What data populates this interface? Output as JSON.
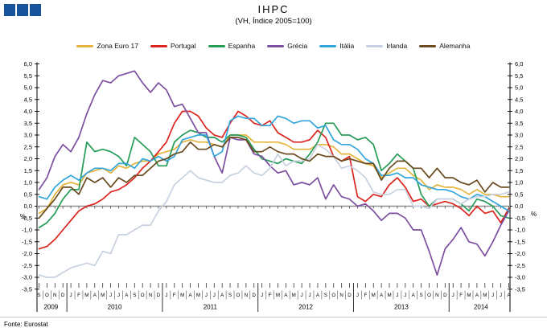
{
  "header": {
    "title": "IHPC",
    "subtitle": "(VH, Índice 2005=100)"
  },
  "logo": {
    "color": "#17549B",
    "squares": 3
  },
  "footer": {
    "source": "Fonte: Eurostat"
  },
  "chart_data": {
    "type": "line",
    "title": "IHPC",
    "subtitle": "(VH, Índice 2005=100)",
    "ylabel": "%",
    "ylim": [
      -3.5,
      6.0
    ],
    "ytick_step": 0.5,
    "decimal_separator": ",",
    "grid": "zero-line-only",
    "legend_position": "top-center",
    "months": [
      "S",
      "O",
      "N",
      "D",
      "J",
      "F",
      "M",
      "A",
      "M",
      "J",
      "J",
      "A",
      "S",
      "O",
      "N",
      "D",
      "J",
      "F",
      "M",
      "A",
      "M",
      "J",
      "J",
      "A",
      "S",
      "O",
      "N",
      "D",
      "J",
      "F",
      "M",
      "A",
      "M",
      "J",
      "J",
      "A",
      "S",
      "O",
      "N",
      "D",
      "J",
      "F",
      "M",
      "A",
      "M",
      "J",
      "J",
      "A",
      "S",
      "O",
      "N",
      "D",
      "J",
      "F",
      "M",
      "A",
      "M",
      "J",
      "J",
      "A"
    ],
    "year_segments": [
      {
        "label": "2009",
        "start": 0,
        "end": 3
      },
      {
        "label": "2010",
        "start": 4,
        "end": 15
      },
      {
        "label": "2011",
        "start": 16,
        "end": 27
      },
      {
        "label": "2012",
        "start": 28,
        "end": 39
      },
      {
        "label": "2013",
        "start": 40,
        "end": 51
      },
      {
        "label": "2014",
        "start": 52,
        "end": 59
      }
    ],
    "series": [
      {
        "name": "Zona Euro 17",
        "color": "#E4B33B",
        "values": [
          -0.3,
          -0.1,
          0.5,
          0.9,
          1.0,
          0.9,
          1.4,
          1.5,
          1.6,
          1.4,
          1.7,
          1.6,
          1.8,
          1.9,
          1.9,
          2.2,
          2.3,
          2.4,
          2.7,
          2.8,
          2.7,
          2.7,
          2.6,
          2.5,
          3.0,
          3.0,
          3.0,
          2.7,
          2.7,
          2.7,
          2.7,
          2.6,
          2.4,
          2.4,
          2.4,
          2.6,
          2.6,
          2.5,
          2.2,
          2.2,
          2.0,
          1.8,
          1.7,
          1.2,
          1.4,
          1.6,
          1.6,
          1.3,
          1.1,
          0.7,
          0.9,
          0.8,
          0.8,
          0.7,
          0.5,
          0.7,
          0.5,
          0.5,
          0.4,
          0.4
        ]
      },
      {
        "name": "Portugal",
        "color": "#DC241F",
        "values": [
          -1.8,
          -1.7,
          -1.4,
          -1.0,
          -0.6,
          -0.2,
          0.0,
          0.1,
          0.3,
          0.6,
          0.7,
          0.9,
          1.2,
          1.6,
          1.9,
          2.3,
          2.7,
          3.5,
          4.0,
          4.0,
          3.8,
          3.3,
          3.0,
          2.9,
          3.5,
          4.0,
          3.8,
          3.5,
          3.4,
          3.6,
          3.1,
          2.9,
          2.7,
          2.7,
          2.8,
          3.2,
          2.9,
          2.1,
          1.9,
          2.1,
          0.4,
          0.2,
          0.5,
          0.4,
          0.9,
          1.2,
          0.8,
          0.2,
          0.3,
          0.0,
          0.1,
          0.2,
          0.1,
          -0.1,
          -0.4,
          0.0,
          -0.3,
          -0.2,
          -0.7,
          -0.1
        ]
      },
      {
        "name": "Espanha",
        "color": "#259C58",
        "values": [
          -0.9,
          -0.7,
          -0.3,
          0.3,
          0.7,
          0.7,
          2.7,
          2.3,
          2.4,
          2.3,
          2.1,
          1.7,
          2.9,
          2.6,
          2.3,
          1.7,
          1.7,
          2.7,
          3.0,
          3.2,
          3.1,
          2.9,
          2.9,
          2.7,
          3.0,
          3.0,
          2.9,
          2.4,
          2.0,
          1.9,
          1.8,
          2.0,
          1.9,
          1.8,
          2.2,
          2.7,
          3.5,
          3.5,
          3.0,
          3.0,
          2.8,
          2.9,
          2.6,
          1.5,
          1.8,
          2.2,
          1.9,
          1.6,
          0.5,
          0.0,
          0.3,
          0.3,
          0.3,
          0.1,
          -0.2,
          0.3,
          0.2,
          0.0,
          -0.4,
          -0.5
        ]
      },
      {
        "name": "Grécia",
        "color": "#7C4FA0",
        "values": [
          0.7,
          1.2,
          2.1,
          2.6,
          2.3,
          2.9,
          3.9,
          4.7,
          5.3,
          5.2,
          5.5,
          5.6,
          5.7,
          5.2,
          4.8,
          5.2,
          4.9,
          4.2,
          4.3,
          3.7,
          3.1,
          3.1,
          2.1,
          1.4,
          2.9,
          2.8,
          2.8,
          2.2,
          2.1,
          1.7,
          1.4,
          1.5,
          0.9,
          1.0,
          0.9,
          1.2,
          0.3,
          0.9,
          0.4,
          0.3,
          0.0,
          0.1,
          -0.2,
          -0.6,
          -0.3,
          -0.3,
          -0.5,
          -1.0,
          -1.0,
          -1.9,
          -2.9,
          -1.8,
          -1.4,
          -0.9,
          -1.5,
          -1.6,
          -2.1,
          -1.5,
          -0.8,
          -0.2
        ]
      },
      {
        "name": "Itália",
        "color": "#31A5DC",
        "values": [
          0.4,
          0.3,
          0.8,
          1.1,
          1.3,
          1.1,
          1.4,
          1.6,
          1.6,
          1.5,
          1.8,
          1.8,
          1.6,
          2.0,
          1.9,
          2.1,
          1.9,
          2.1,
          2.8,
          2.9,
          3.0,
          3.0,
          2.1,
          2.3,
          3.6,
          3.8,
          3.7,
          3.7,
          3.4,
          3.4,
          3.8,
          3.7,
          3.5,
          3.6,
          3.6,
          3.3,
          3.4,
          2.8,
          2.6,
          2.6,
          2.4,
          2.0,
          1.8,
          1.3,
          1.3,
          1.4,
          1.2,
          1.2,
          0.9,
          0.8,
          0.7,
          0.7,
          0.6,
          0.4,
          0.3,
          0.5,
          0.4,
          0.2,
          0.0,
          -0.2
        ]
      },
      {
        "name": "Irlanda",
        "color": "#C8D1DF",
        "values": [
          -2.9,
          -3.0,
          -3.0,
          -2.8,
          -2.6,
          -2.5,
          -2.4,
          -2.5,
          -1.9,
          -2.0,
          -1.2,
          -1.2,
          -1.0,
          -0.8,
          -0.8,
          -0.2,
          0.2,
          0.9,
          1.2,
          1.5,
          1.2,
          1.1,
          1.0,
          1.0,
          1.3,
          1.4,
          1.7,
          1.4,
          1.3,
          1.6,
          2.2,
          1.7,
          1.9,
          1.9,
          2.0,
          2.6,
          2.4,
          2.1,
          1.6,
          1.7,
          1.5,
          1.2,
          0.6,
          0.5,
          0.5,
          0.7,
          0.7,
          0.0,
          0.0,
          -0.1,
          0.3,
          0.3,
          0.3,
          0.1,
          0.3,
          0.4,
          0.4,
          0.5,
          0.5,
          0.6
        ]
      },
      {
        "name": "Alemanha",
        "color": "#6A4B1F",
        "values": [
          -0.5,
          -0.1,
          0.3,
          0.8,
          0.8,
          0.5,
          1.2,
          1.0,
          1.2,
          0.8,
          1.2,
          1.0,
          1.3,
          1.3,
          1.6,
          1.9,
          2.0,
          2.2,
          2.3,
          2.7,
          2.4,
          2.4,
          2.6,
          2.5,
          2.9,
          2.9,
          2.8,
          2.3,
          2.3,
          2.5,
          2.3,
          2.2,
          2.2,
          2.0,
          1.9,
          2.2,
          2.1,
          2.1,
          1.9,
          2.0,
          1.9,
          1.8,
          1.8,
          1.1,
          1.6,
          1.9,
          1.9,
          1.6,
          1.6,
          1.2,
          1.6,
          1.2,
          1.2,
          1.0,
          0.9,
          1.1,
          0.6,
          1.0,
          0.8,
          0.8
        ]
      }
    ],
    "source": "Fonte: Eurostat"
  }
}
